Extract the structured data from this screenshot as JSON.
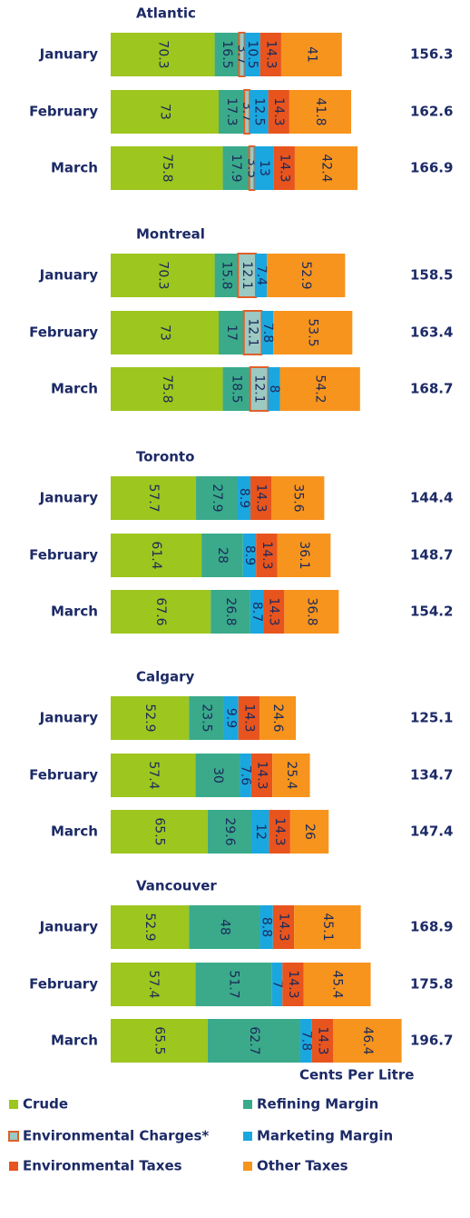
{
  "chart_data": [
    {
      "type": "bar",
      "orientation": "horizontal",
      "stacked": true,
      "title": "Atlantic",
      "categories": [
        "January",
        "February",
        "March"
      ],
      "series": [
        {
          "name": "Crude",
          "color": "#9dc61e",
          "values": [
            70.3,
            73.0,
            75.8
          ]
        },
        {
          "name": "Refining Margin",
          "color": "#3aaa8a",
          "values": [
            16.5,
            17.3,
            17.9
          ]
        },
        {
          "name": "Environmental Charges*",
          "color": "#9cc9c2",
          "border_color": "#e0602a",
          "values": [
            3.7,
            3.7,
            3.5
          ]
        },
        {
          "name": "Marketing Margin",
          "color": "#1aa7e0",
          "values": [
            10.5,
            12.5,
            13.0
          ]
        },
        {
          "name": "Environmental Taxes",
          "color": "#e8541e",
          "values": [
            14.3,
            14.3,
            14.3
          ]
        },
        {
          "name": "Other Taxes",
          "color": "#f7941d",
          "values": [
            41.0,
            41.8,
            42.4
          ]
        }
      ],
      "totals": [
        156.3,
        162.6,
        166.9
      ]
    },
    {
      "type": "bar",
      "orientation": "horizontal",
      "stacked": true,
      "title": "Montreal",
      "categories": [
        "January",
        "February",
        "March"
      ],
      "series": [
        {
          "name": "Crude",
          "color": "#9dc61e",
          "values": [
            70.3,
            73.0,
            75.8
          ]
        },
        {
          "name": "Refining Margin",
          "color": "#3aaa8a",
          "values": [
            15.8,
            17.0,
            18.5
          ]
        },
        {
          "name": "Environmental Charges*",
          "color": "#9cc9c2",
          "border_color": "#e0602a",
          "values": [
            12.1,
            12.1,
            12.1
          ]
        },
        {
          "name": "Marketing Margin",
          "color": "#1aa7e0",
          "values": [
            7.4,
            7.8,
            8.0
          ]
        },
        {
          "name": "Environmental Taxes",
          "color": "#e8541e",
          "values": [
            null,
            null,
            null
          ]
        },
        {
          "name": "Other Taxes",
          "color": "#f7941d",
          "values": [
            52.9,
            53.5,
            54.2
          ]
        }
      ],
      "totals": [
        158.5,
        163.4,
        168.7
      ]
    },
    {
      "type": "bar",
      "orientation": "horizontal",
      "stacked": true,
      "title": "Toronto",
      "categories": [
        "January",
        "February",
        "March"
      ],
      "series": [
        {
          "name": "Crude",
          "color": "#9dc61e",
          "values": [
            57.7,
            61.4,
            67.6
          ]
        },
        {
          "name": "Refining Margin",
          "color": "#3aaa8a",
          "values": [
            27.9,
            28.0,
            26.8
          ]
        },
        {
          "name": "Environmental Charges*",
          "color": "#9cc9c2",
          "border_color": "#e0602a",
          "values": [
            null,
            null,
            null
          ]
        },
        {
          "name": "Marketing Margin",
          "color": "#1aa7e0",
          "values": [
            8.9,
            8.9,
            8.7
          ]
        },
        {
          "name": "Environmental Taxes",
          "color": "#e8541e",
          "values": [
            14.3,
            14.3,
            14.3
          ]
        },
        {
          "name": "Other Taxes",
          "color": "#f7941d",
          "values": [
            35.6,
            36.1,
            36.8
          ]
        }
      ],
      "totals": [
        144.4,
        148.7,
        154.2
      ]
    },
    {
      "type": "bar",
      "orientation": "horizontal",
      "stacked": true,
      "title": "Calgary",
      "categories": [
        "January",
        "February",
        "March"
      ],
      "series": [
        {
          "name": "Crude",
          "color": "#9dc61e",
          "values": [
            52.9,
            57.4,
            65.5
          ]
        },
        {
          "name": "Refining Margin",
          "color": "#3aaa8a",
          "values": [
            23.5,
            30.0,
            29.6
          ]
        },
        {
          "name": "Environmental Charges*",
          "color": "#9cc9c2",
          "border_color": "#e0602a",
          "values": [
            null,
            null,
            null
          ]
        },
        {
          "name": "Marketing Margin",
          "color": "#1aa7e0",
          "values": [
            9.9,
            7.6,
            12.0
          ]
        },
        {
          "name": "Environmental Taxes",
          "color": "#e8541e",
          "values": [
            14.3,
            14.3,
            14.3
          ]
        },
        {
          "name": "Other Taxes",
          "color": "#f7941d",
          "values": [
            24.6,
            25.4,
            26.0
          ]
        }
      ],
      "totals": [
        125.1,
        134.7,
        147.4
      ]
    },
    {
      "type": "bar",
      "orientation": "horizontal",
      "stacked": true,
      "title": "Vancouver",
      "categories": [
        "January",
        "February",
        "March"
      ],
      "series": [
        {
          "name": "Crude",
          "color": "#9dc61e",
          "values": [
            52.9,
            57.4,
            65.5
          ]
        },
        {
          "name": "Refining Margin",
          "color": "#3aaa8a",
          "values": [
            48.0,
            51.7,
            62.7
          ]
        },
        {
          "name": "Environmental Charges*",
          "color": "#9cc9c2",
          "border_color": "#e0602a",
          "values": [
            null,
            null,
            null
          ]
        },
        {
          "name": "Marketing Margin",
          "color": "#1aa7e0",
          "values": [
            8.8,
            7.0,
            7.8
          ]
        },
        {
          "name": "Environmental Taxes",
          "color": "#e8541e",
          "values": [
            14.3,
            14.3,
            14.3
          ]
        },
        {
          "name": "Other Taxes",
          "color": "#f7941d",
          "values": [
            45.1,
            45.4,
            46.4
          ]
        }
      ],
      "totals": [
        168.9,
        175.8,
        196.7
      ]
    }
  ],
  "axis_label": "Cents Per Litre"
}
